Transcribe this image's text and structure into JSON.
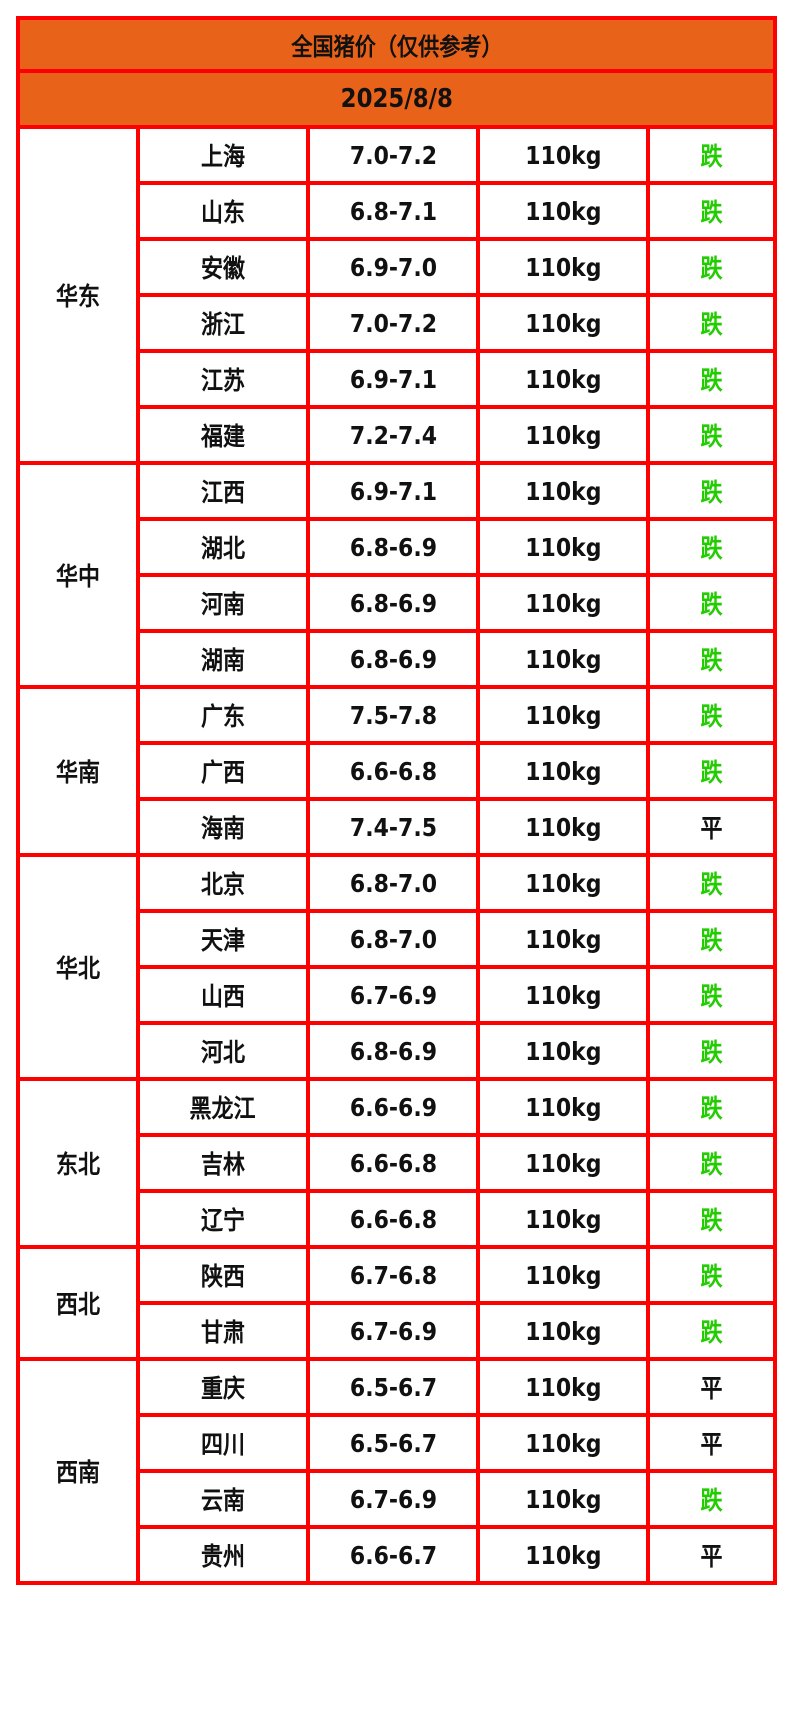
{
  "title": "全国猪价（仅供参考）",
  "date": "2025/8/8",
  "colors": {
    "header_bg": "#E9621A",
    "border": "#ff0000",
    "fall": "#22cc00",
    "flat": "#111111"
  },
  "regions": [
    {
      "name": "华东",
      "rows": [
        {
          "province": "上海",
          "price": "7.0-7.2",
          "weight": "110kg",
          "trend": "跌"
        },
        {
          "province": "山东",
          "price": "6.8-7.1",
          "weight": "110kg",
          "trend": "跌"
        },
        {
          "province": "安徽",
          "price": "6.9-7.0",
          "weight": "110kg",
          "trend": "跌"
        },
        {
          "province": "浙江",
          "price": "7.0-7.2",
          "weight": "110kg",
          "trend": "跌"
        },
        {
          "province": "江苏",
          "price": "6.9-7.1",
          "weight": "110kg",
          "trend": "跌"
        },
        {
          "province": "福建",
          "price": "7.2-7.4",
          "weight": "110kg",
          "trend": "跌"
        }
      ]
    },
    {
      "name": "华中",
      "rows": [
        {
          "province": "江西",
          "price": "6.9-7.1",
          "weight": "110kg",
          "trend": "跌"
        },
        {
          "province": "湖北",
          "price": "6.8-6.9",
          "weight": "110kg",
          "trend": "跌"
        },
        {
          "province": "河南",
          "price": "6.8-6.9",
          "weight": "110kg",
          "trend": "跌"
        },
        {
          "province": "湖南",
          "price": "6.8-6.9",
          "weight": "110kg",
          "trend": "跌"
        }
      ]
    },
    {
      "name": "华南",
      "rows": [
        {
          "province": "广东",
          "price": "7.5-7.8",
          "weight": "110kg",
          "trend": "跌"
        },
        {
          "province": "广西",
          "price": "6.6-6.8",
          "weight": "110kg",
          "trend": "跌"
        },
        {
          "province": "海南",
          "price": "7.4-7.5",
          "weight": "110kg",
          "trend": "平"
        }
      ]
    },
    {
      "name": "华北",
      "rows": [
        {
          "province": "北京",
          "price": "6.8-7.0",
          "weight": "110kg",
          "trend": "跌"
        },
        {
          "province": "天津",
          "price": "6.8-7.0",
          "weight": "110kg",
          "trend": "跌"
        },
        {
          "province": "山西",
          "price": "6.7-6.9",
          "weight": "110kg",
          "trend": "跌"
        },
        {
          "province": "河北",
          "price": "6.8-6.9",
          "weight": "110kg",
          "trend": "跌"
        }
      ]
    },
    {
      "name": "东北",
      "rows": [
        {
          "province": "黑龙江",
          "price": "6.6-6.9",
          "weight": "110kg",
          "trend": "跌"
        },
        {
          "province": "吉林",
          "price": "6.6-6.8",
          "weight": "110kg",
          "trend": "跌"
        },
        {
          "province": "辽宁",
          "price": "6.6-6.8",
          "weight": "110kg",
          "trend": "跌"
        }
      ]
    },
    {
      "name": "西北",
      "rows": [
        {
          "province": "陕西",
          "price": "6.7-6.8",
          "weight": "110kg",
          "trend": "跌"
        },
        {
          "province": "甘肃",
          "price": "6.7-6.9",
          "weight": "110kg",
          "trend": "跌"
        }
      ]
    },
    {
      "name": "西南",
      "rows": [
        {
          "province": "重庆",
          "price": "6.5-6.7",
          "weight": "110kg",
          "trend": "平"
        },
        {
          "province": "四川",
          "price": "6.5-6.7",
          "weight": "110kg",
          "trend": "平"
        },
        {
          "province": "云南",
          "price": "6.7-6.9",
          "weight": "110kg",
          "trend": "跌"
        },
        {
          "province": "贵州",
          "price": "6.6-6.7",
          "weight": "110kg",
          "trend": "平"
        }
      ]
    }
  ]
}
